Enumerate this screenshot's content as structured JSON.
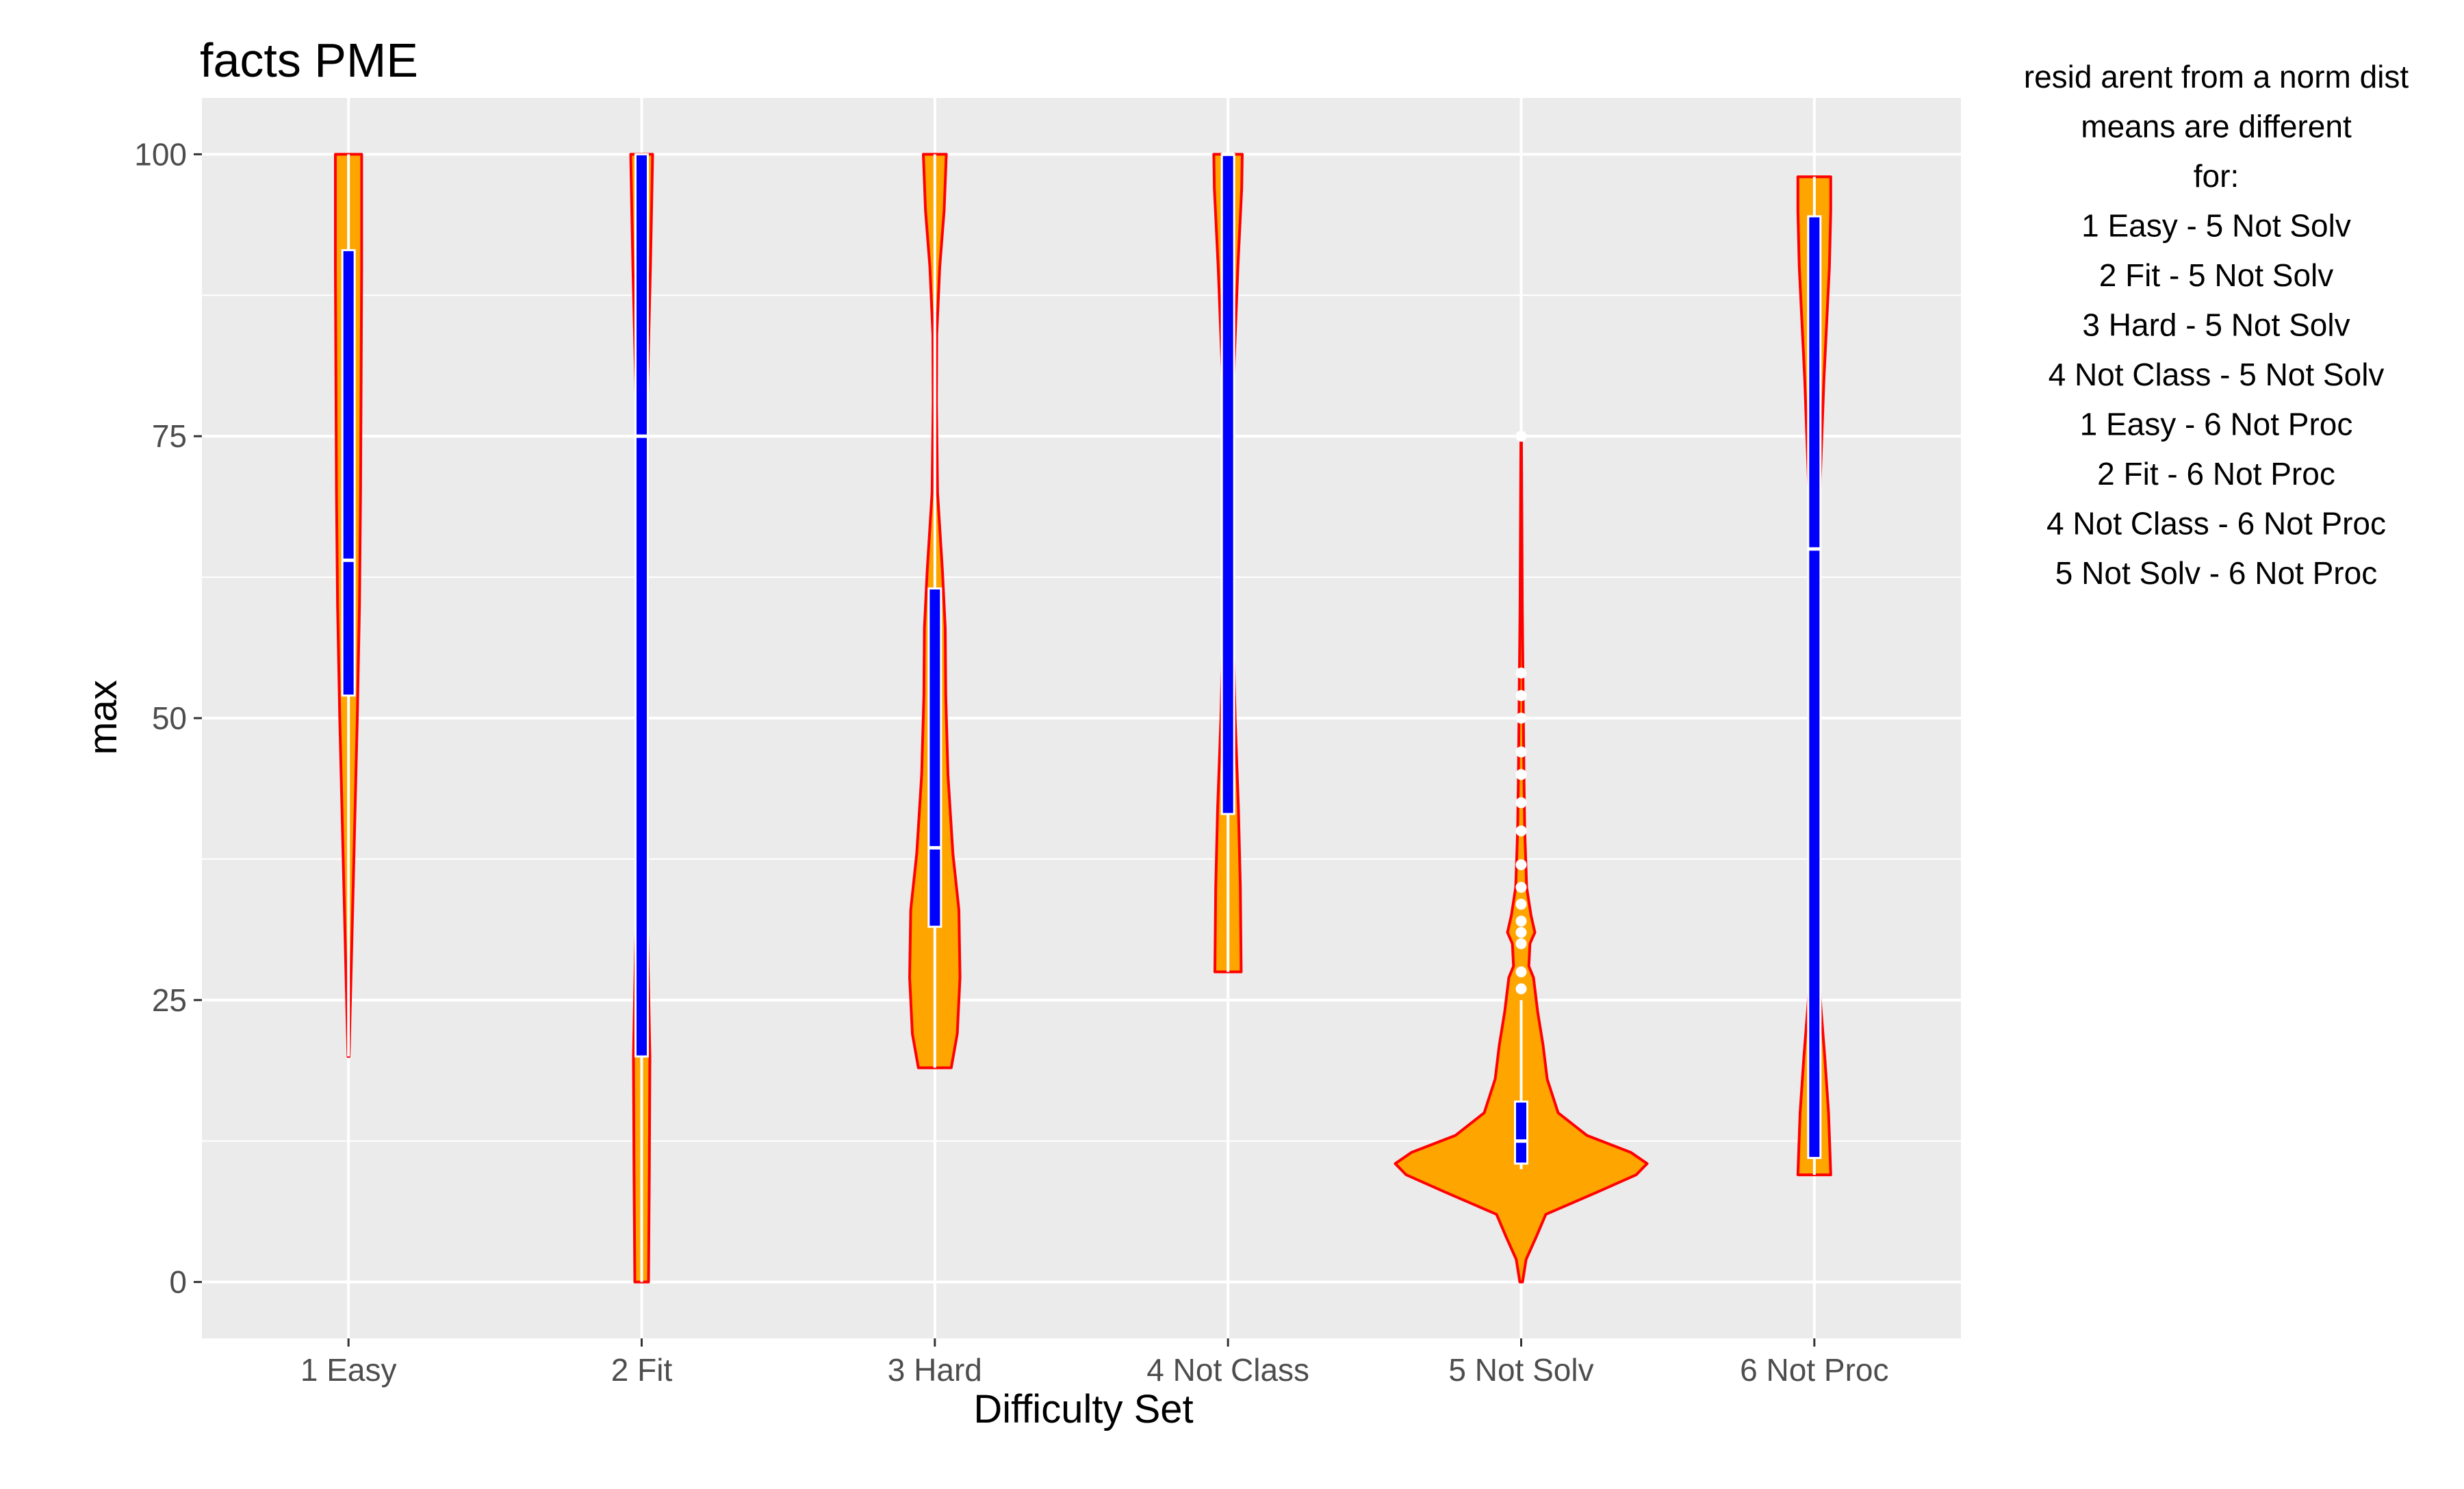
{
  "chart_data": {
    "type": "violin",
    "title": "facts PME",
    "xlabel": "Difficulty Set",
    "ylabel": "max",
    "ylim": [
      -5,
      105
    ],
    "yticks": [
      0,
      25,
      50,
      75,
      100
    ],
    "grid": true,
    "colors": {
      "panel": "#ebebeb",
      "grid": "#ffffff",
      "violin_fill": "#ffa500",
      "violin_outline": "#ff0000",
      "box_fill": "#0000ff",
      "box_outline": "#ffffff",
      "median": "#ffffff"
    },
    "categories": [
      "1 Easy",
      "2 Fit",
      "3 Hard",
      "4 Not Class",
      "5 Not Solv",
      "6 Not Proc"
    ],
    "violins": [
      {
        "category": "1 Easy",
        "min": 20,
        "q1": 52,
        "median": 64,
        "q3": 91.5,
        "max": 100,
        "outliers": [],
        "density": [
          [
            20,
            0.02
          ],
          [
            30,
            0.12
          ],
          [
            40,
            0.22
          ],
          [
            50,
            0.32
          ],
          [
            60,
            0.4
          ],
          [
            70,
            0.44
          ],
          [
            80,
            0.46
          ],
          [
            90,
            0.48
          ],
          [
            100,
            0.48
          ]
        ]
      },
      {
        "category": "2 Fit",
        "min": 0,
        "q1": 20,
        "median": 75,
        "q3": 100,
        "max": 100,
        "outliers": [],
        "density": [
          [
            0,
            0.25
          ],
          [
            10,
            0.28
          ],
          [
            20,
            0.3
          ],
          [
            30,
            0.22
          ],
          [
            40,
            0.14
          ],
          [
            50,
            0.1
          ],
          [
            60,
            0.11
          ],
          [
            70,
            0.16
          ],
          [
            80,
            0.22
          ],
          [
            90,
            0.32
          ],
          [
            100,
            0.4
          ]
        ]
      },
      {
        "category": "3 Hard",
        "min": 19,
        "q1": 31.5,
        "median": 38.5,
        "q3": 61.5,
        "max": 100,
        "outliers": [],
        "density": [
          [
            19,
            0.6
          ],
          [
            22,
            0.82
          ],
          [
            27,
            0.92
          ],
          [
            33,
            0.88
          ],
          [
            38,
            0.66
          ],
          [
            45,
            0.48
          ],
          [
            52,
            0.4
          ],
          [
            58,
            0.38
          ],
          [
            63,
            0.28
          ],
          [
            70,
            0.1
          ],
          [
            78,
            0.06
          ],
          [
            84,
            0.07
          ],
          [
            90,
            0.18
          ],
          [
            95,
            0.34
          ],
          [
            100,
            0.42
          ]
        ]
      },
      {
        "category": "4 Not Class",
        "min": 27.5,
        "q1": 41.5,
        "median": 100,
        "q3": 100,
        "max": 100,
        "outliers": [],
        "density": [
          [
            27.5,
            0.48
          ],
          [
            35,
            0.45
          ],
          [
            42,
            0.38
          ],
          [
            50,
            0.26
          ],
          [
            60,
            0.16
          ],
          [
            70,
            0.12
          ],
          [
            80,
            0.2
          ],
          [
            90,
            0.36
          ],
          [
            97,
            0.5
          ],
          [
            100,
            0.52
          ]
        ]
      },
      {
        "category": "5 Not Solv",
        "min": 10,
        "q1": 10.5,
        "median": 12.5,
        "q3": 16,
        "max": 25,
        "outliers": [
          26,
          27.5,
          30,
          31,
          32,
          33.5,
          35,
          37,
          40,
          42.5,
          45,
          47,
          50,
          52,
          54,
          75
        ],
        "density": [
          [
            0,
            0.05
          ],
          [
            2,
            0.18
          ],
          [
            4,
            0.55
          ],
          [
            6,
            0.9
          ],
          [
            8,
            2.8
          ],
          [
            9.5,
            4.2
          ],
          [
            10.5,
            4.6
          ],
          [
            11.5,
            4.0
          ],
          [
            13,
            2.4
          ],
          [
            15,
            1.35
          ],
          [
            18,
            0.95
          ],
          [
            21,
            0.8
          ],
          [
            24,
            0.6
          ],
          [
            27,
            0.45
          ],
          [
            28,
            0.28
          ],
          [
            30,
            0.32
          ],
          [
            31,
            0.5
          ],
          [
            32.5,
            0.36
          ],
          [
            35,
            0.2
          ],
          [
            40,
            0.13
          ],
          [
            45,
            0.1
          ],
          [
            50,
            0.08
          ],
          [
            55,
            0.06
          ],
          [
            60,
            0.04
          ],
          [
            70,
            0.02
          ],
          [
            75,
            0.01
          ]
        ]
      },
      {
        "category": "6 Not Proc",
        "min": 9.5,
        "q1": 11,
        "median": 65,
        "q3": 94.5,
        "max": 98,
        "outliers": [],
        "density": [
          [
            9.5,
            0.6
          ],
          [
            15,
            0.52
          ],
          [
            20,
            0.38
          ],
          [
            25,
            0.22
          ],
          [
            30,
            0.12
          ],
          [
            40,
            0.05
          ],
          [
            50,
            0.05
          ],
          [
            60,
            0.1
          ],
          [
            70,
            0.2
          ],
          [
            80,
            0.35
          ],
          [
            90,
            0.55
          ],
          [
            95,
            0.6
          ],
          [
            98,
            0.6
          ]
        ]
      }
    ]
  },
  "annotation": {
    "lines": [
      "resid arent from a norm dist",
      "means are different",
      "for:",
      "1 Easy - 5 Not Solv",
      "2 Fit - 5 Not Solv",
      "3 Hard - 5 Not Solv",
      "4 Not Class - 5 Not Solv",
      "1 Easy - 6 Not Proc",
      "2 Fit - 6 Not Proc",
      "4 Not Class - 6 Not Proc",
      "5 Not Solv - 6 Not Proc"
    ]
  }
}
